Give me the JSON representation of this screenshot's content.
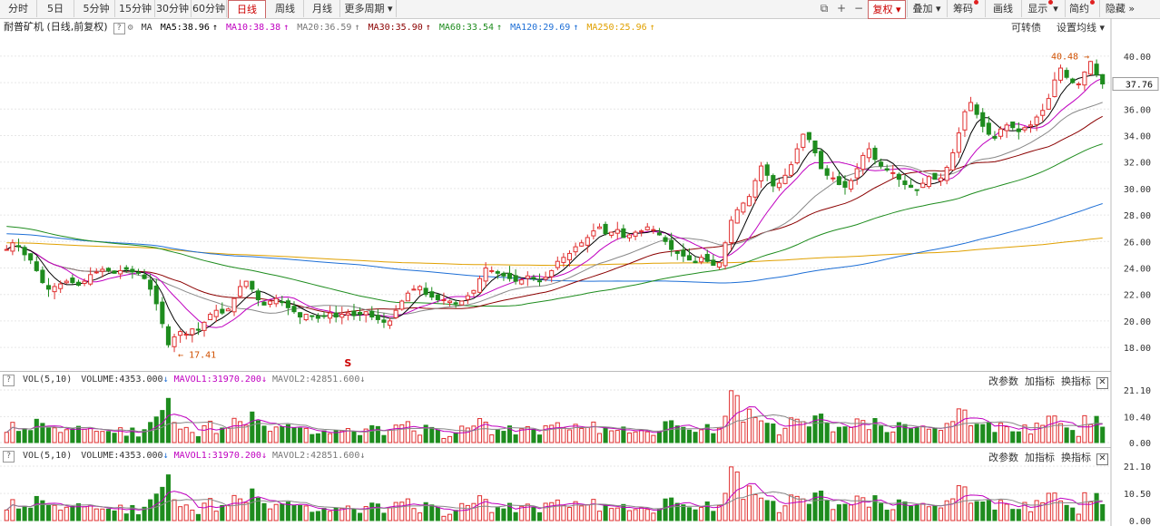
{
  "toolbar": {
    "periods": [
      "分时",
      "5日",
      "5分钟",
      "15分钟",
      "30分钟",
      "60分钟",
      "日线",
      "周线",
      "月线",
      "更多周期"
    ],
    "active_period": "日线",
    "right_buttons": [
      "复权",
      "叠加",
      "筹码",
      "画线",
      "显示",
      "简约",
      "隐藏"
    ]
  },
  "legend": {
    "stock": "耐普矿机 (日线,前复权)",
    "ma_label": "MA",
    "ma5": "MA5:38.96",
    "ma10": "MA10:38.38",
    "ma20": "MA20:36.59",
    "ma30": "MA30:35.90",
    "ma60": "MA60:33.54",
    "ma120": "MA120:29.69",
    "ma250": "MA250:25.96",
    "links": [
      "可转债",
      "设置均线"
    ]
  },
  "colors": {
    "up": "#e03030",
    "down": "#1e8c1e",
    "ma5": "#000000",
    "ma10": "#c000c0",
    "ma20": "#888888",
    "ma30": "#8b0000",
    "ma60": "#1e8c1e",
    "ma120": "#1e6fd6",
    "ma250": "#e0a000",
    "highlight_label": "#d05000"
  },
  "volume_panel": {
    "title": "VOL(5,10)",
    "volume": "VOLUME:4353.000",
    "mavol1": "MAVOL1:31970.200",
    "mavol2": "MAVOL2:42851.600",
    "links": [
      "改参数",
      "加指标",
      "换指标"
    ],
    "close": "✕",
    "axis1": [
      "21.10",
      "10.40",
      "0.00"
    ],
    "axis2": [
      "21.10",
      "10.50",
      "0.00"
    ]
  },
  "chart_data": {
    "type": "candlestick",
    "y_ticks": [
      "40.00",
      "38.00",
      "36.00",
      "34.00",
      "32.00",
      "30.00",
      "28.00",
      "26.00",
      "24.00",
      "22.00",
      "20.00",
      "18.00"
    ],
    "ylim": [
      16.5,
      41.5
    ],
    "current_price": "37.76",
    "high_label": "40.48",
    "low_label": "17.41",
    "marker": "S",
    "closes": [
      25.4,
      25.9,
      25.6,
      25.0,
      24.6,
      23.8,
      22.9,
      22.4,
      22.6,
      22.8,
      23.0,
      22.9,
      22.7,
      23.0,
      23.5,
      23.7,
      23.9,
      23.8,
      23.6,
      23.8,
      23.9,
      23.7,
      23.6,
      23.2,
      22.4,
      21.3,
      19.8,
      18.2,
      18.8,
      19.2,
      19.0,
      19.4,
      19.3,
      19.9,
      20.5,
      20.8,
      20.6,
      20.9,
      21.7,
      22.6,
      23.0,
      22.4,
      21.6,
      21.2,
      21.5,
      21.7,
      21.4,
      21.0,
      20.7,
      20.3,
      20.5,
      20.4,
      20.2,
      20.4,
      20.6,
      20.3,
      20.5,
      20.6,
      20.4,
      20.5,
      20.7,
      20.3,
      20.1,
      19.9,
      20.0,
      20.8,
      21.5,
      22.1,
      22.4,
      22.6,
      22.0,
      21.8,
      21.6,
      21.6,
      21.5,
      21.3,
      21.5,
      21.9,
      22.3,
      23.2,
      24.0,
      23.8,
      23.6,
      23.4,
      23.2,
      23.0,
      23.1,
      23.4,
      23.2,
      23.0,
      23.3,
      23.8,
      24.5,
      24.8,
      25.1,
      25.6,
      25.9,
      26.3,
      26.8,
      27.1,
      26.6,
      26.7,
      26.9,
      26.3,
      26.5,
      26.7,
      26.8,
      27.1,
      26.9,
      26.5,
      26.0,
      25.4,
      25.1,
      24.9,
      24.6,
      24.4,
      24.8,
      24.5,
      24.2,
      24.4,
      25.9,
      27.6,
      28.4,
      28.9,
      29.4,
      30.6,
      31.7,
      31.0,
      30.2,
      30.4,
      31.0,
      31.8,
      33.0,
      34.1,
      33.7,
      32.7,
      31.5,
      31.0,
      30.8,
      30.3,
      30.1,
      30.6,
      31.5,
      32.5,
      33.0,
      32.2,
      31.7,
      31.4,
      31.2,
      30.7,
      30.3,
      30.1,
      29.9,
      30.4,
      30.9,
      30.7,
      30.8,
      31.6,
      32.7,
      34.2,
      35.8,
      36.5,
      35.6,
      34.7,
      34.1,
      33.8,
      34.5,
      34.8,
      34.6,
      34.3,
      34.6,
      34.8,
      35.4,
      35.9,
      36.8,
      38.2,
      39.1,
      38.4,
      38.0,
      37.9,
      38.8,
      39.6,
      38.6,
      37.9
    ]
  }
}
